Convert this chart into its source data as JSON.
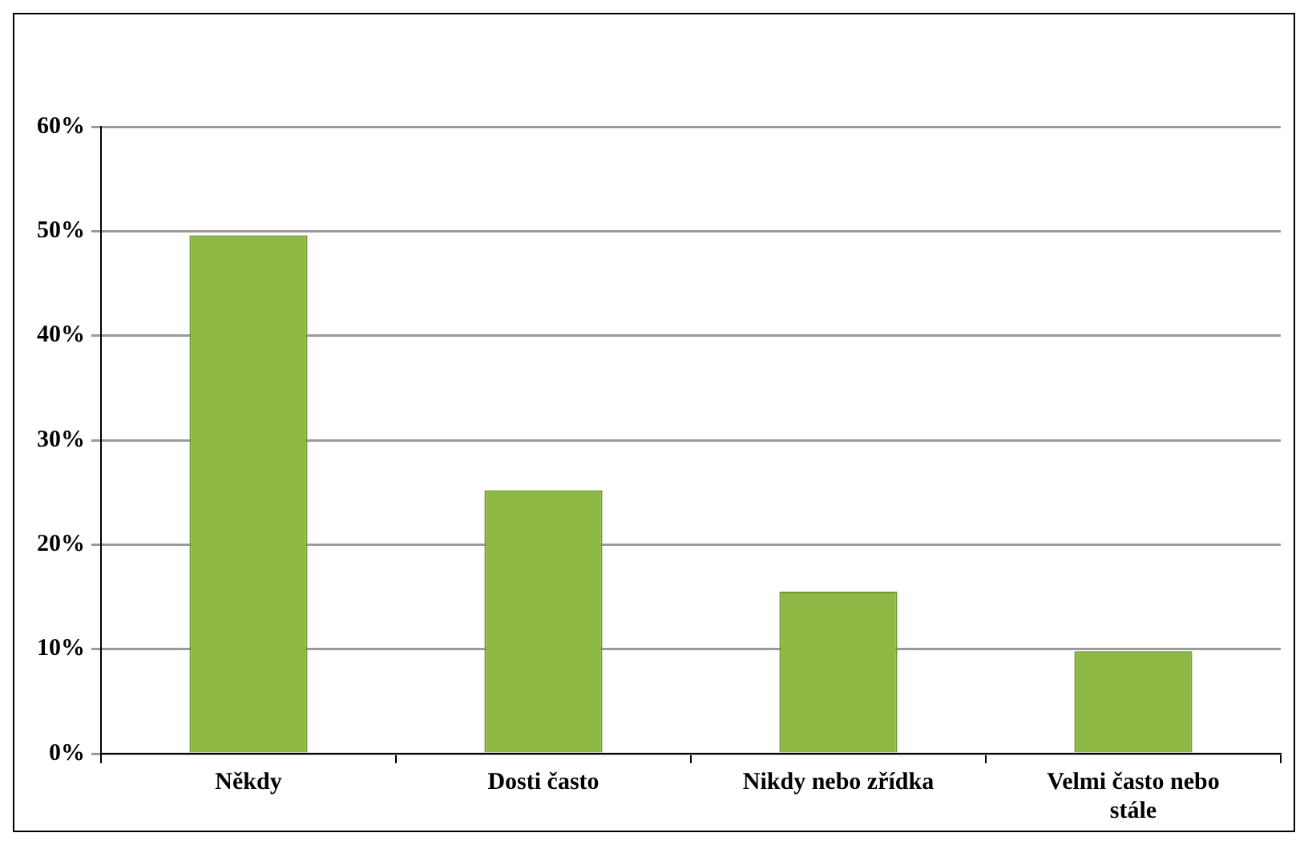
{
  "chart_data": {
    "type": "bar",
    "categories": [
      "Někdy",
      "Dosti často",
      "Nikdy nebo zřídka",
      "Velmi často nebo stále"
    ],
    "values": [
      49.6,
      25.2,
      15.5,
      9.8
    ],
    "color": "#8db843",
    "ylim": [
      0,
      60
    ],
    "yticks": [
      {
        "value": 0,
        "label": "0%"
      },
      {
        "value": 10,
        "label": "10%"
      },
      {
        "value": 20,
        "label": "20%"
      },
      {
        "value": 30,
        "label": "30%"
      },
      {
        "value": 40,
        "label": "40%"
      },
      {
        "value": 50,
        "label": "50%"
      },
      {
        "value": 60,
        "label": "60%"
      }
    ],
    "grid": "y",
    "legend": false
  }
}
